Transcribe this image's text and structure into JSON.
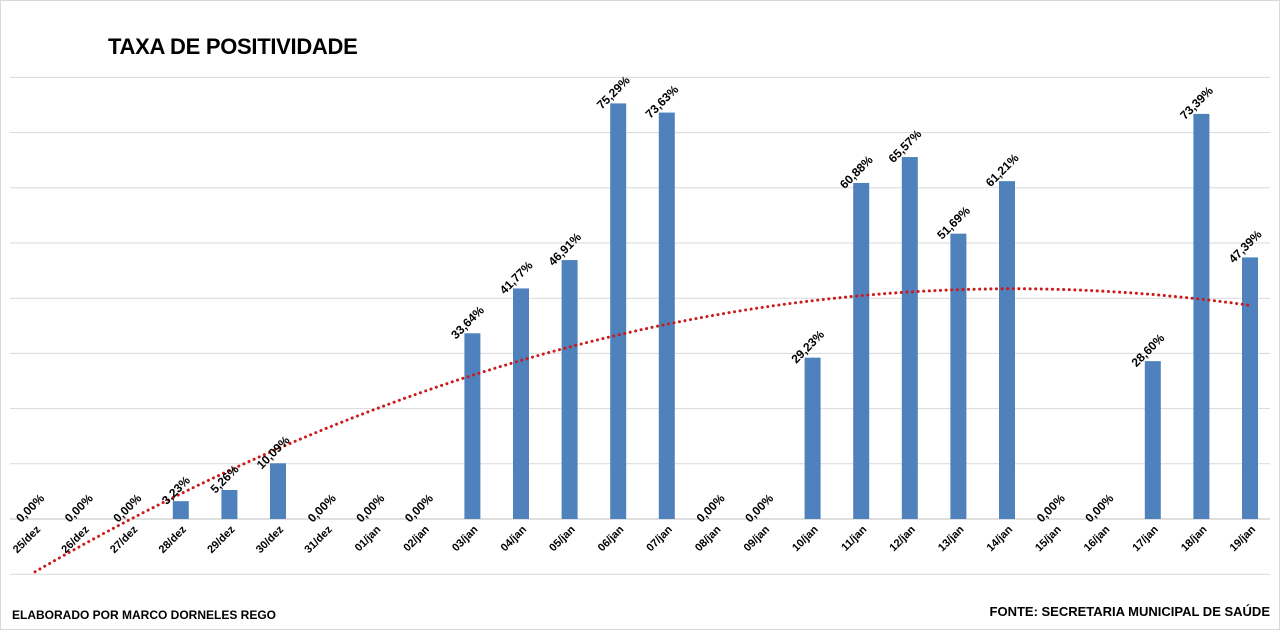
{
  "chart_data": {
    "type": "bar",
    "title": "TAXA DE POSITIVIDADE",
    "categories": [
      "25/dez",
      "26/dez",
      "27/dez",
      "28/dez",
      "29/dez",
      "30/dez",
      "31/dez",
      "01/jan",
      "02/jan",
      "03/jan",
      "04/jan",
      "05/jan",
      "06/jan",
      "07/jan",
      "08/jan",
      "09/jan",
      "10/jan",
      "11/jan",
      "12/jan",
      "13/jan",
      "14/jan",
      "15/jan",
      "16/jan",
      "17/jan",
      "18/jan",
      "19/jan"
    ],
    "values": [
      0,
      0,
      0,
      3.23,
      5.26,
      10.09,
      0,
      0,
      0,
      33.64,
      41.77,
      46.91,
      75.29,
      73.63,
      0,
      0,
      29.23,
      60.88,
      65.57,
      51.69,
      61.21,
      0,
      0,
      28.6,
      73.39,
      47.39
    ],
    "data_labels": [
      "0,00%",
      "0,00%",
      "0,00%",
      "3,23%",
      "5,26%",
      "10,09%",
      "0,00%",
      "0,00%",
      "0,00%",
      "33,64%",
      "41,77%",
      "46,91%",
      "75,29%",
      "73,63%",
      "0,00%",
      "0,00%",
      "29,23%",
      "60,88%",
      "65,57%",
      "51,69%",
      "61,21%",
      "0,00%",
      "0,00%",
      "28,60%",
      "73,39%",
      "47,39%"
    ],
    "trendline": {
      "type": "polynomial",
      "style": "dotted",
      "color": "#cc1a1a"
    },
    "xlabel": "",
    "ylabel": "",
    "ylim": [
      -10,
      80
    ],
    "grid": true,
    "legend": "none",
    "bar_color": "#4f81bd"
  },
  "footer": {
    "left": "ELABORADO POR MARCO DORNELES REGO",
    "right": "FONTE: SECRETARIA MUNICIPAL DE SAÚDE"
  }
}
